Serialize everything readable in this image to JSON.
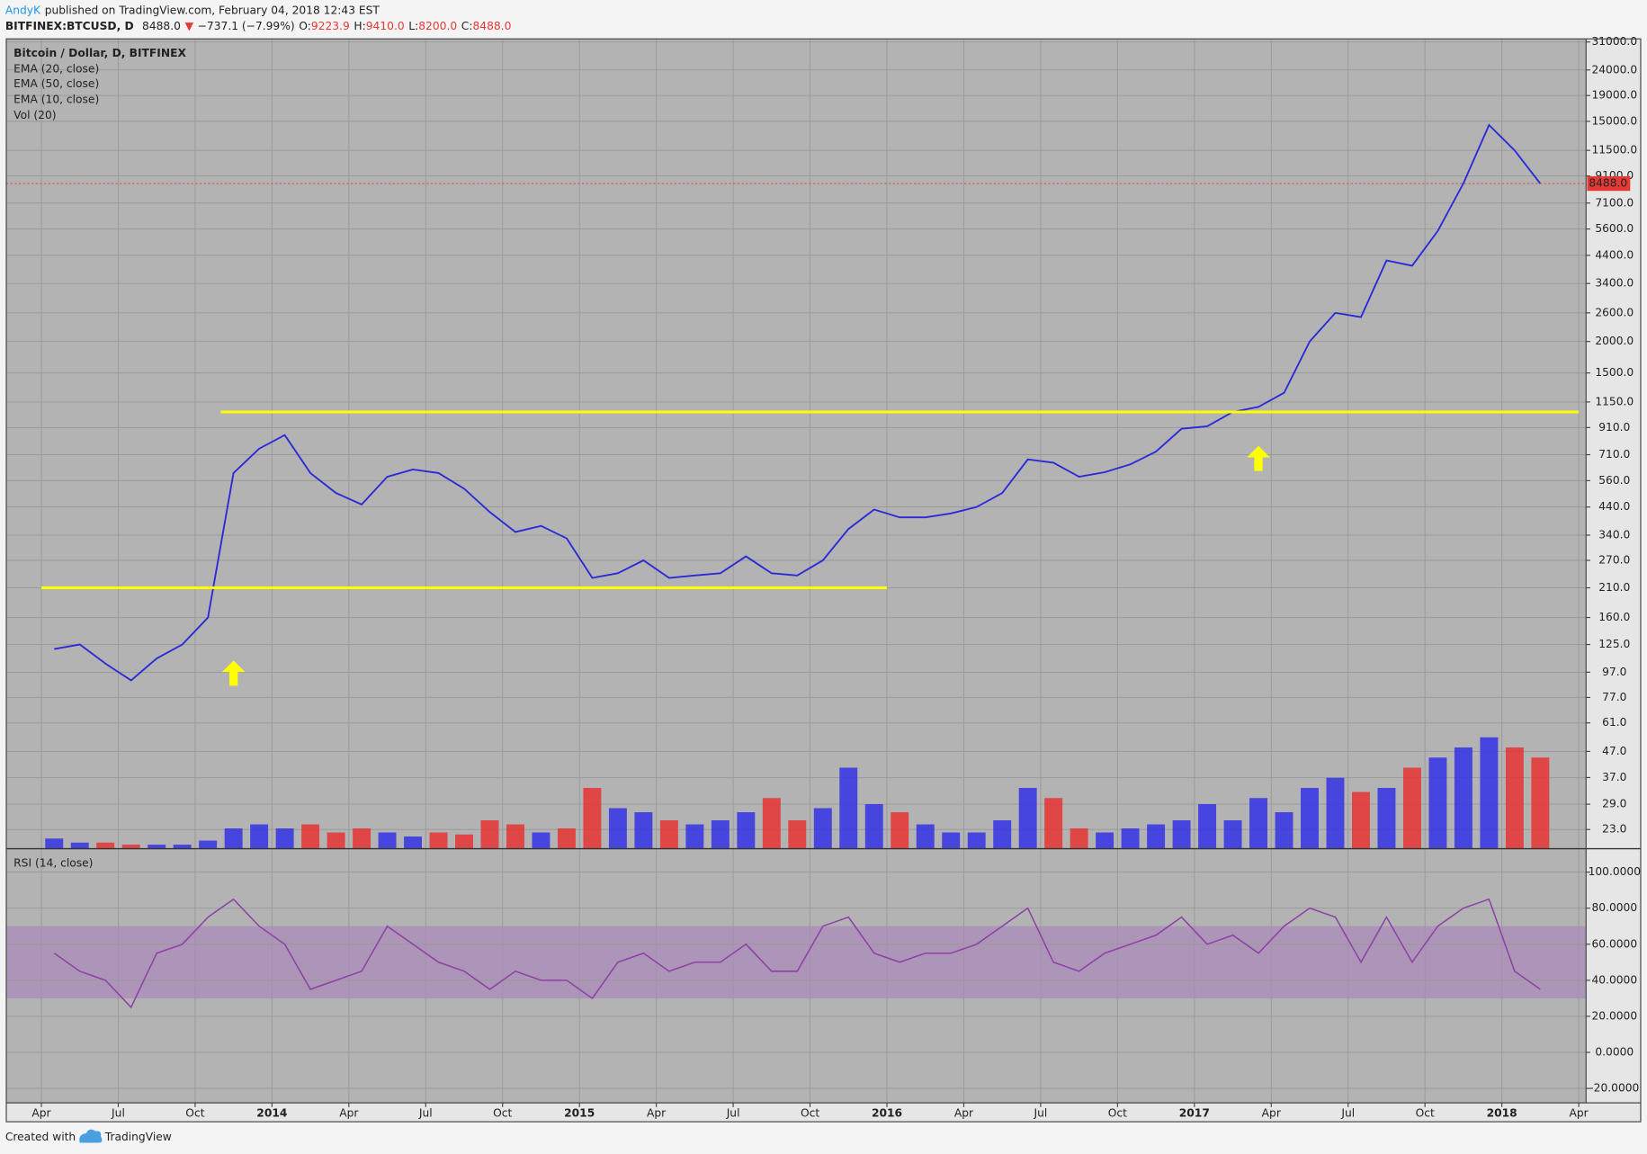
{
  "header": {
    "author": "AndyK",
    "published": "published on TradingView.com, February 04, 2018 12:43 EST",
    "symbol": "BITFINEX:BTCUSD, D",
    "last": "8488.0",
    "direction": "▼",
    "change": "−737.1 (−7.99%)",
    "ohlc": [
      {
        "label": "O:",
        "value": "9223.9"
      },
      {
        "label": "H:",
        "value": "9410.0"
      },
      {
        "label": "L:",
        "value": "8200.0"
      },
      {
        "label": "C:",
        "value": "8488.0"
      }
    ]
  },
  "chart_data": [
    {
      "type": "line",
      "log_scale": true,
      "grid": true,
      "indicators": [
        "EMA (20, close)",
        "EMA (50, close)",
        "EMA (10, close)"
      ],
      "x": [
        "2013-04",
        "2013-05",
        "2013-06",
        "2013-07",
        "2013-08",
        "2013-09",
        "2013-10",
        "2013-11",
        "2013-12",
        "2014-01",
        "2014-02",
        "2014-03",
        "2014-04",
        "2014-05",
        "2014-06",
        "2014-07",
        "2014-08",
        "2014-09",
        "2014-10",
        "2014-11",
        "2014-12",
        "2015-01",
        "2015-02",
        "2015-03",
        "2015-04",
        "2015-05",
        "2015-06",
        "2015-07",
        "2015-08",
        "2015-09",
        "2015-10",
        "2015-11",
        "2015-12",
        "2016-01",
        "2016-02",
        "2016-03",
        "2016-04",
        "2016-05",
        "2016-06",
        "2016-07",
        "2016-08",
        "2016-09",
        "2016-10",
        "2016-11",
        "2016-12",
        "2017-01",
        "2017-02",
        "2017-03",
        "2017-04",
        "2017-05",
        "2017-06",
        "2017-07",
        "2017-08",
        "2017-09",
        "2017-10",
        "2017-11",
        "2017-12",
        "2018-01",
        "2018-02"
      ],
      "xlim": [
        "2013-03",
        "2018-04"
      ],
      "xticks": [
        {
          "value": "2013-04",
          "label": "Apr"
        },
        {
          "value": "2013-07",
          "label": "Jul"
        },
        {
          "value": "2013-10",
          "label": "Oct"
        },
        {
          "value": "2014-01",
          "label": "2014"
        },
        {
          "value": "2014-04",
          "label": "Apr"
        },
        {
          "value": "2014-07",
          "label": "Jul"
        },
        {
          "value": "2014-10",
          "label": "Oct"
        },
        {
          "value": "2015-01",
          "label": "2015"
        },
        {
          "value": "2015-04",
          "label": "Apr"
        },
        {
          "value": "2015-07",
          "label": "Jul"
        },
        {
          "value": "2015-10",
          "label": "Oct"
        },
        {
          "value": "2016-01",
          "label": "2016"
        },
        {
          "value": "2016-04",
          "label": "Apr"
        },
        {
          "value": "2016-07",
          "label": "Jul"
        },
        {
          "value": "2016-10",
          "label": "Oct"
        },
        {
          "value": "2017-01",
          "label": "2017"
        },
        {
          "value": "2017-04",
          "label": "Apr"
        },
        {
          "value": "2017-07",
          "label": "Jul"
        },
        {
          "value": "2017-10",
          "label": "Oct"
        },
        {
          "value": "2018-01",
          "label": "2018"
        },
        {
          "value": "2018-04",
          "label": "Apr"
        }
      ],
      "ylim": [
        19.3,
        31900
      ],
      "yticks": [
        {
          "value": 31000,
          "label": "31000.0"
        },
        {
          "value": 24000,
          "label": "24000.0"
        },
        {
          "value": 19000,
          "label": "19000.0"
        },
        {
          "value": 15000,
          "label": "15000.0"
        },
        {
          "value": 11500,
          "label": "11500.0"
        },
        {
          "value": 9100,
          "label": "9100.0"
        },
        {
          "value": 7100,
          "label": "7100.0"
        },
        {
          "value": 5600,
          "label": "5600.0"
        },
        {
          "value": 4400,
          "label": "4400.0"
        },
        {
          "value": 3400,
          "label": "3400.0"
        },
        {
          "value": 2600,
          "label": "2600.0"
        },
        {
          "value": 2000,
          "label": "2000.0"
        },
        {
          "value": 1500,
          "label": "1500.0"
        },
        {
          "value": 1150,
          "label": "1150.0"
        },
        {
          "value": 910,
          "label": "910.0"
        },
        {
          "value": 710,
          "label": "710.0"
        },
        {
          "value": 560,
          "label": "560.0"
        },
        {
          "value": 440,
          "label": "440.0"
        },
        {
          "value": 340,
          "label": "340.0"
        },
        {
          "value": 270,
          "label": "270.0"
        },
        {
          "value": 210,
          "label": "210.0"
        },
        {
          "value": 160,
          "label": "160.0"
        },
        {
          "value": 125,
          "label": "125.0"
        },
        {
          "value": 97,
          "label": "97.0"
        },
        {
          "value": 77,
          "label": "77.0"
        },
        {
          "value": 61,
          "label": "61.0"
        },
        {
          "value": 47,
          "label": "47.0"
        },
        {
          "value": 37,
          "label": "37.0"
        },
        {
          "value": 29,
          "label": "29.0"
        },
        {
          "value": 23,
          "label": "23.0"
        }
      ],
      "y2lim": [
        0,
        400
      ],
      "series": [
        {
          "name": "Bitcoin / Dollar, D, BITFINEX",
          "color": "#2a2ad6",
          "values": [
            120,
            125,
            105,
            90,
            110,
            125,
            160,
            600,
            750,
            850,
            600,
            500,
            450,
            580,
            620,
            600,
            520,
            420,
            350,
            370,
            330,
            230,
            240,
            270,
            230,
            235,
            240,
            280,
            240,
            235,
            270,
            360,
            430,
            400,
            400,
            415,
            440,
            500,
            680,
            660,
            580,
            605,
            650,
            730,
            900,
            920,
            1050,
            1100,
            1250,
            2000,
            2600,
            2500,
            4200,
            4000,
            5500,
            8500,
            14500,
            11500,
            8488
          ]
        },
        {
          "name": "Vol (20)",
          "type": "bar",
          "axis": "y2",
          "up_color": "#3333e6",
          "down_color": "#e63333",
          "values": [
            5,
            3,
            3,
            2,
            2,
            2,
            4,
            10,
            12,
            10,
            12,
            8,
            10,
            8,
            6,
            8,
            7,
            14,
            12,
            8,
            10,
            30,
            20,
            18,
            14,
            12,
            14,
            18,
            25,
            14,
            20,
            40,
            22,
            18,
            12,
            8,
            8,
            14,
            30,
            25,
            10,
            8,
            10,
            12,
            14,
            22,
            14,
            25,
            18,
            30,
            35,
            28,
            30,
            40,
            45,
            50,
            55,
            50,
            45
          ]
        }
      ],
      "hlines": [
        {
          "value": 1050,
          "from": "2013-11",
          "to": "2018-03",
          "color": "#ffff00"
        },
        {
          "value": 210,
          "from": "2013-04",
          "to": "2015-12",
          "color": "#ffff00"
        }
      ],
      "arrows": [
        {
          "x": "2013-11",
          "y": 108,
          "color": "#ffff00"
        },
        {
          "x": "2017-03",
          "y": 770,
          "color": "#ffff00"
        }
      ],
      "last_price": {
        "value": 8488,
        "label": "8488.0",
        "color": "#e53935"
      }
    },
    {
      "type": "line",
      "title": "RSI (14, close)",
      "grid": true,
      "color": "#8e3fa8",
      "band": [
        30,
        70
      ],
      "band_color": "#a98bb8",
      "ylim": [
        -28,
        113
      ],
      "yticks": [
        {
          "value": 100,
          "label": "100.0000"
        },
        {
          "value": 80,
          "label": "80.0000"
        },
        {
          "value": 60,
          "label": "60.0000"
        },
        {
          "value": 40,
          "label": "40.0000"
        },
        {
          "value": 20,
          "label": "20.0000"
        },
        {
          "value": 0,
          "label": "0.0000"
        },
        {
          "value": -20,
          "label": "-20.0000"
        }
      ],
      "values": [
        55,
        45,
        40,
        25,
        55,
        60,
        75,
        85,
        70,
        60,
        35,
        40,
        45,
        70,
        60,
        50,
        45,
        35,
        45,
        40,
        40,
        30,
        50,
        55,
        45,
        50,
        50,
        60,
        45,
        45,
        70,
        75,
        55,
        50,
        55,
        55,
        60,
        70,
        80,
        50,
        45,
        55,
        60,
        65,
        75,
        60,
        65,
        55,
        70,
        80,
        75,
        50,
        75,
        50,
        70,
        80,
        85,
        45,
        35
      ]
    }
  ],
  "footer": {
    "text": "Created with",
    "brand": "TradingView"
  }
}
